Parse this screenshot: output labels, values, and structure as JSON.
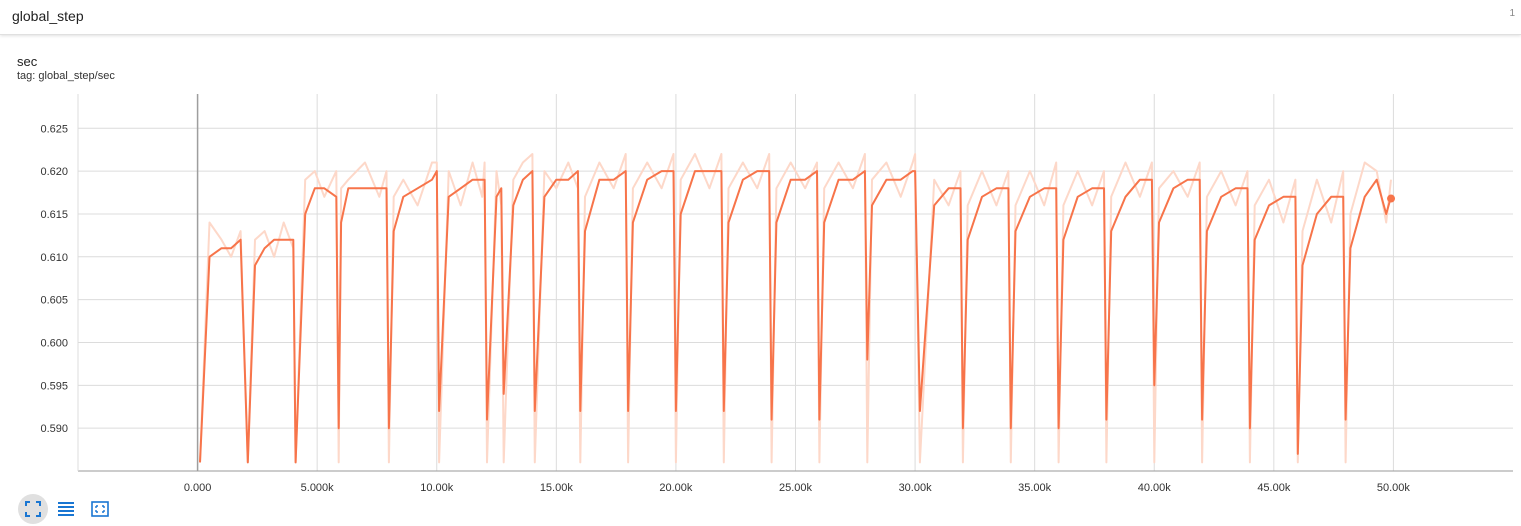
{
  "header": {
    "title": "global_step",
    "count": "1"
  },
  "card": {
    "title": "sec",
    "tag": "tag: global_step/sec"
  },
  "toolbar": {
    "buttons": [
      {
        "name": "expand-icon",
        "active": true
      },
      {
        "name": "data-selection-icon",
        "active": false
      },
      {
        "name": "fit-domain-icon",
        "active": false
      }
    ]
  },
  "colors": {
    "smoothed": "#f7744a",
    "raw": "#fdd8c9",
    "grid": "#dcdcdc",
    "axis": "#999999"
  },
  "chart_data": {
    "type": "line",
    "title": "",
    "xlabel": "",
    "ylabel": "",
    "xlim": [
      -5000,
      55000
    ],
    "ylim": [
      0.585,
      0.629
    ],
    "x_ticks": [
      0,
      5000,
      10000,
      15000,
      20000,
      25000,
      30000,
      35000,
      40000,
      45000,
      50000
    ],
    "x_tick_labels": [
      "0.000",
      "5.000k",
      "10.00k",
      "15.00k",
      "20.00k",
      "25.00k",
      "30.00k",
      "35.00k",
      "40.00k",
      "45.00k",
      "50.00k"
    ],
    "y_ticks": [
      0.59,
      0.595,
      0.6,
      0.605,
      0.61,
      0.615,
      0.62,
      0.625
    ],
    "y_tick_labels": [
      "0.590",
      "0.595",
      "0.600",
      "0.605",
      "0.610",
      "0.615",
      "0.620",
      "0.625"
    ],
    "grid": true,
    "series": [
      {
        "name": "",
        "style": "smoothed",
        "x": [
          100,
          500,
          1000,
          1400,
          1800,
          2100,
          2400,
          2800,
          3200,
          3600,
          4000,
          4100,
          4500,
          4900,
          5300,
          5800,
          5900,
          6000,
          6300,
          7000,
          7600,
          7900,
          8000,
          8200,
          8600,
          9200,
          9800,
          10000,
          10100,
          10500,
          11000,
          11500,
          11900,
          12000,
          12100,
          12500,
          12700,
          12800,
          13200,
          13600,
          14000,
          14100,
          14500,
          15000,
          15500,
          15900,
          16000,
          16200,
          16800,
          17400,
          17900,
          18000,
          18200,
          18800,
          19400,
          19900,
          20000,
          20200,
          20800,
          21400,
          21900,
          22000,
          22200,
          22800,
          23400,
          23900,
          24000,
          24200,
          24800,
          25400,
          25900,
          26000,
          26200,
          26800,
          27400,
          27900,
          28000,
          28200,
          28800,
          29400,
          29900,
          30000,
          30200,
          30800,
          31400,
          31900,
          32000,
          32200,
          32800,
          33400,
          33900,
          34000,
          34200,
          34800,
          35400,
          35900,
          36000,
          36200,
          36800,
          37400,
          37900,
          38000,
          38200,
          38800,
          39400,
          39900,
          40000,
          40200,
          40800,
          41400,
          41900,
          42000,
          42200,
          42800,
          43400,
          43900,
          44000,
          44200,
          44800,
          45400,
          45900,
          46000,
          46200,
          46800,
          47400,
          47900,
          48000,
          48200,
          48800,
          49300,
          49700,
          49900
        ],
        "y": [
          0.586,
          0.61,
          0.611,
          0.611,
          0.612,
          0.586,
          0.609,
          0.611,
          0.612,
          0.612,
          0.612,
          0.586,
          0.615,
          0.618,
          0.618,
          0.617,
          0.59,
          0.614,
          0.618,
          0.618,
          0.618,
          0.618,
          0.59,
          0.613,
          0.617,
          0.618,
          0.619,
          0.62,
          0.592,
          0.617,
          0.618,
          0.619,
          0.619,
          0.619,
          0.591,
          0.617,
          0.618,
          0.594,
          0.616,
          0.619,
          0.62,
          0.592,
          0.617,
          0.619,
          0.619,
          0.62,
          0.592,
          0.613,
          0.619,
          0.619,
          0.62,
          0.592,
          0.614,
          0.619,
          0.62,
          0.62,
          0.592,
          0.615,
          0.62,
          0.62,
          0.62,
          0.592,
          0.614,
          0.619,
          0.62,
          0.62,
          0.591,
          0.614,
          0.619,
          0.619,
          0.62,
          0.591,
          0.614,
          0.619,
          0.619,
          0.62,
          0.598,
          0.616,
          0.619,
          0.619,
          0.62,
          0.62,
          0.592,
          0.616,
          0.618,
          0.618,
          0.59,
          0.612,
          0.617,
          0.618,
          0.618,
          0.59,
          0.613,
          0.617,
          0.618,
          0.618,
          0.59,
          0.612,
          0.617,
          0.618,
          0.618,
          0.591,
          0.613,
          0.617,
          0.619,
          0.619,
          0.595,
          0.614,
          0.618,
          0.619,
          0.619,
          0.591,
          0.613,
          0.617,
          0.618,
          0.618,
          0.59,
          0.612,
          0.616,
          0.617,
          0.617,
          0.587,
          0.609,
          0.615,
          0.617,
          0.617,
          0.591,
          0.611,
          0.617,
          0.619,
          0.615,
          0.617
        ]
      },
      {
        "name": "",
        "style": "raw",
        "x": [
          100,
          500,
          1000,
          1400,
          1800,
          2100,
          2400,
          2800,
          3200,
          3600,
          4000,
          4100,
          4500,
          4900,
          5300,
          5800,
          5900,
          6000,
          6300,
          7000,
          7600,
          7900,
          8000,
          8200,
          8600,
          9200,
          9800,
          10000,
          10100,
          10500,
          11000,
          11500,
          11900,
          12000,
          12100,
          12500,
          12700,
          12800,
          13200,
          13600,
          14000,
          14100,
          14500,
          15000,
          15500,
          15900,
          16000,
          16200,
          16800,
          17400,
          17900,
          18000,
          18200,
          18800,
          19400,
          19900,
          20000,
          20200,
          20800,
          21400,
          21900,
          22000,
          22200,
          22800,
          23400,
          23900,
          24000,
          24200,
          24800,
          25400,
          25900,
          26000,
          26200,
          26800,
          27400,
          27900,
          28000,
          28200,
          28800,
          29400,
          29900,
          30000,
          30200,
          30800,
          31400,
          31900,
          32000,
          32200,
          32800,
          33400,
          33900,
          34000,
          34200,
          34800,
          35400,
          35900,
          36000,
          36200,
          36800,
          37400,
          37900,
          38000,
          38200,
          38800,
          39400,
          39900,
          40000,
          40200,
          40800,
          41400,
          41900,
          42000,
          42200,
          42800,
          43400,
          43900,
          44000,
          44200,
          44800,
          45400,
          45900,
          46000,
          46200,
          46800,
          47400,
          47900,
          48000,
          48200,
          48800,
          49300,
          49700,
          49900
        ],
        "y": [
          0.586,
          0.614,
          0.612,
          0.61,
          0.613,
          0.586,
          0.612,
          0.613,
          0.61,
          0.614,
          0.611,
          0.586,
          0.619,
          0.62,
          0.617,
          0.62,
          0.586,
          0.618,
          0.619,
          0.621,
          0.617,
          0.62,
          0.586,
          0.617,
          0.619,
          0.616,
          0.621,
          0.621,
          0.586,
          0.62,
          0.616,
          0.621,
          0.617,
          0.621,
          0.586,
          0.62,
          0.616,
          0.586,
          0.619,
          0.621,
          0.622,
          0.586,
          0.62,
          0.618,
          0.621,
          0.618,
          0.586,
          0.617,
          0.621,
          0.618,
          0.622,
          0.586,
          0.618,
          0.621,
          0.618,
          0.622,
          0.586,
          0.619,
          0.622,
          0.618,
          0.622,
          0.586,
          0.618,
          0.621,
          0.618,
          0.622,
          0.586,
          0.618,
          0.621,
          0.618,
          0.621,
          0.586,
          0.618,
          0.621,
          0.618,
          0.622,
          0.586,
          0.619,
          0.621,
          0.617,
          0.621,
          0.622,
          0.586,
          0.619,
          0.616,
          0.62,
          0.586,
          0.616,
          0.62,
          0.616,
          0.62,
          0.586,
          0.616,
          0.62,
          0.616,
          0.621,
          0.586,
          0.616,
          0.62,
          0.616,
          0.62,
          0.586,
          0.617,
          0.621,
          0.617,
          0.621,
          0.586,
          0.618,
          0.62,
          0.617,
          0.621,
          0.586,
          0.617,
          0.62,
          0.616,
          0.62,
          0.586,
          0.616,
          0.619,
          0.614,
          0.619,
          0.586,
          0.613,
          0.619,
          0.614,
          0.62,
          0.586,
          0.615,
          0.621,
          0.62,
          0.614,
          0.619
        ]
      }
    ],
    "last_point": {
      "x": 49900,
      "y": 0.6168
    }
  }
}
